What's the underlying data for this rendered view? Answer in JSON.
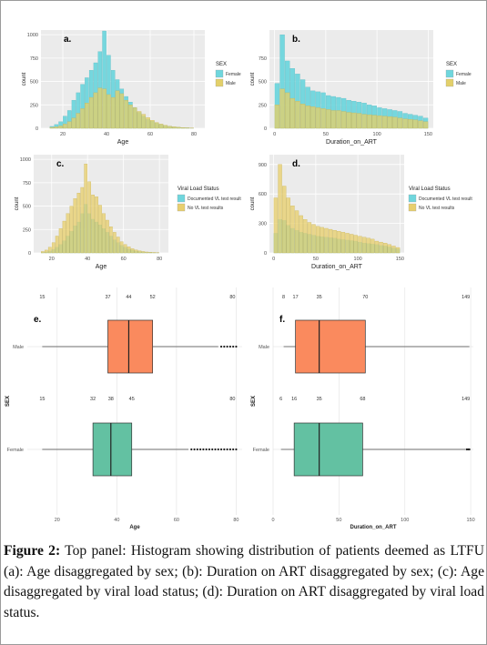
{
  "colors": {
    "female": "#6fd6dd",
    "male": "#e3d06a",
    "documented": "#6fd6dd",
    "no_vl": "#e8cf6e",
    "box_male": "#fa8a5e",
    "box_female": "#63c1a2",
    "panel_bg": "#ebebeb",
    "grid": "#ffffff"
  },
  "caption": {
    "label": "Figure 2:",
    "text": " Top panel: Histogram showing distribution of patients deemed as LTFU (a): Age disaggregated by sex; (b): Duration on ART disaggregated by sex; (c): Age disaggregated by viral load status; (d): Duration on ART disaggregated by viral load status."
  },
  "chart_data": [
    {
      "id": "a",
      "panel_label": "a.",
      "type": "histogram",
      "xlabel": "Age",
      "ylabel": "count",
      "xlim": [
        10,
        85
      ],
      "xticks": [
        20,
        40,
        60,
        80
      ],
      "ylim": [
        0,
        1050
      ],
      "yticks": [
        0,
        250,
        500,
        750,
        1000
      ],
      "legend_title": "SEX",
      "legend_position": "right",
      "x": [
        15,
        17,
        19,
        21,
        23,
        25,
        27,
        29,
        31,
        33,
        35,
        37,
        39,
        41,
        43,
        45,
        47,
        49,
        51,
        53,
        55,
        57,
        59,
        61,
        63,
        65,
        67,
        69,
        71,
        73,
        75,
        77,
        79
      ],
      "series": [
        {
          "name": "Female",
          "values": [
            20,
            40,
            70,
            130,
            190,
            300,
            380,
            470,
            540,
            620,
            700,
            820,
            1040,
            780,
            620,
            520,
            420,
            340,
            280,
            220,
            170,
            130,
            95,
            75,
            55,
            40,
            28,
            20,
            14,
            10,
            7,
            5,
            3
          ]
        },
        {
          "name": "Male",
          "values": [
            10,
            15,
            25,
            45,
            70,
            110,
            160,
            210,
            270,
            330,
            380,
            430,
            420,
            360,
            330,
            400,
            370,
            300,
            250,
            220,
            180,
            150,
            115,
            85,
            62,
            45,
            32,
            22,
            16,
            11,
            8,
            5,
            3
          ]
        }
      ]
    },
    {
      "id": "b",
      "panel_label": "b.",
      "type": "histogram",
      "xlabel": "Duration_on_ART",
      "ylabel": "count",
      "xlim": [
        -5,
        155
      ],
      "xticks": [
        0,
        50,
        100,
        150
      ],
      "ylim": [
        0,
        1050
      ],
      "yticks": [
        0,
        250,
        500,
        750
      ],
      "legend_title": "SEX",
      "legend_position": "right",
      "x": [
        2.5,
        7.5,
        12.5,
        17.5,
        22.5,
        27.5,
        32.5,
        37.5,
        42.5,
        47.5,
        52.5,
        57.5,
        62.5,
        67.5,
        72.5,
        77.5,
        82.5,
        87.5,
        92.5,
        97.5,
        102.5,
        107.5,
        112.5,
        117.5,
        122.5,
        127.5,
        132.5,
        137.5,
        142.5,
        147.5
      ],
      "series": [
        {
          "name": "Female",
          "values": [
            480,
            1000,
            720,
            640,
            580,
            520,
            440,
            400,
            390,
            380,
            350,
            340,
            330,
            320,
            300,
            290,
            280,
            270,
            250,
            240,
            220,
            210,
            200,
            190,
            180,
            160,
            150,
            140,
            130,
            110
          ]
        },
        {
          "name": "Male",
          "values": [
            250,
            420,
            380,
            320,
            290,
            260,
            240,
            230,
            220,
            210,
            200,
            190,
            190,
            180,
            170,
            165,
            160,
            150,
            145,
            140,
            135,
            130,
            125,
            120,
            110,
            100,
            95,
            90,
            80,
            70
          ]
        }
      ]
    },
    {
      "id": "c",
      "panel_label": "c.",
      "type": "histogram",
      "xlabel": "Age",
      "ylabel": "count",
      "xlim": [
        10,
        85
      ],
      "xticks": [
        20,
        40,
        60,
        80
      ],
      "ylim": [
        0,
        1050
      ],
      "yticks": [
        0,
        250,
        500,
        750,
        1000
      ],
      "legend_title": "Viral Load Status",
      "legend_position": "right",
      "x": [
        15,
        17,
        19,
        21,
        23,
        25,
        27,
        29,
        31,
        33,
        35,
        37,
        39,
        41,
        43,
        45,
        47,
        49,
        51,
        53,
        55,
        57,
        59,
        61,
        63,
        65,
        67,
        69,
        71,
        73,
        75,
        77,
        79
      ],
      "series": [
        {
          "name": "Documented VL test result",
          "values": [
            5,
            10,
            20,
            35,
            60,
            90,
            130,
            180,
            230,
            290,
            330,
            420,
            520,
            420,
            360,
            330,
            300,
            260,
            220,
            180,
            140,
            110,
            80,
            60,
            42,
            30,
            20,
            14,
            10,
            7,
            5,
            3,
            2
          ]
        },
        {
          "name": "No VL test results",
          "values": [
            15,
            30,
            60,
            110,
            180,
            260,
            340,
            420,
            500,
            580,
            640,
            700,
            950,
            760,
            620,
            600,
            510,
            420,
            350,
            280,
            220,
            170,
            120,
            90,
            65,
            45,
            32,
            22,
            15,
            10,
            7,
            5,
            3
          ]
        }
      ]
    },
    {
      "id": "d",
      "panel_label": "d.",
      "type": "histogram",
      "xlabel": "Duration_on_ART",
      "ylabel": "count",
      "xlim": [
        -5,
        155
      ],
      "xticks": [
        0,
        50,
        100,
        150
      ],
      "ylim": [
        0,
        1000
      ],
      "yticks": [
        0,
        300,
        600,
        900
      ],
      "legend_title": "Viral Load Status",
      "legend_position": "right",
      "x": [
        2.5,
        7.5,
        12.5,
        17.5,
        22.5,
        27.5,
        32.5,
        37.5,
        42.5,
        47.5,
        52.5,
        57.5,
        62.5,
        67.5,
        72.5,
        77.5,
        82.5,
        87.5,
        92.5,
        97.5,
        102.5,
        107.5,
        112.5,
        117.5,
        122.5,
        127.5,
        132.5,
        137.5,
        142.5,
        147.5
      ],
      "series": [
        {
          "name": "Documented VL test result",
          "values": [
            200,
            340,
            330,
            280,
            250,
            230,
            210,
            200,
            190,
            180,
            170,
            165,
            160,
            155,
            150,
            140,
            135,
            130,
            125,
            120,
            110,
            100,
            95,
            90,
            85,
            75,
            70,
            60,
            50,
            40
          ]
        },
        {
          "name": "No VL test results",
          "values": [
            560,
            900,
            680,
            560,
            480,
            430,
            380,
            340,
            310,
            290,
            270,
            260,
            250,
            240,
            230,
            220,
            210,
            200,
            190,
            180,
            170,
            160,
            150,
            140,
            120,
            110,
            100,
            85,
            70,
            55
          ]
        }
      ]
    },
    {
      "id": "e",
      "panel_label": "e.",
      "type": "boxplot",
      "xlabel": "Age",
      "ylabel": "SEX",
      "xlim": [
        10,
        82
      ],
      "xticks": [
        20,
        40,
        60,
        80
      ],
      "categories": [
        "Male",
        "Female"
      ],
      "boxes": [
        {
          "label": "Male",
          "min": 15,
          "q1": 37,
          "median": 44,
          "q3": 52,
          "max": 80,
          "whisker_high": 74,
          "outliers": [
            75,
            76,
            77,
            78,
            79,
            80
          ],
          "stat_labels": [
            "15",
            "37",
            "44",
            "52",
            "80"
          ]
        },
        {
          "label": "Female",
          "min": 15,
          "q1": 32,
          "median": 38,
          "q3": 45,
          "max": 80,
          "whisker_high": 64,
          "outliers": [
            65,
            66,
            67,
            68,
            69,
            70,
            71,
            72,
            73,
            74,
            75,
            76,
            77,
            78,
            79,
            80
          ],
          "stat_labels": [
            "15",
            "32",
            "38",
            "45",
            "80"
          ]
        }
      ]
    },
    {
      "id": "f",
      "panel_label": "f.",
      "type": "boxplot",
      "xlabel": "Duration_on_ART",
      "ylabel": "SEX",
      "xlim": [
        0,
        152
      ],
      "xticks": [
        0,
        50,
        100,
        150
      ],
      "categories": [
        "Male",
        "Female"
      ],
      "boxes": [
        {
          "label": "Male",
          "min": 8,
          "q1": 17,
          "median": 35,
          "q3": 70,
          "max": 149,
          "whisker_high": 149,
          "outliers": [],
          "stat_labels": [
            "8",
            "17",
            "35",
            "70",
            "149"
          ]
        },
        {
          "label": "Female",
          "min": 6,
          "q1": 16,
          "median": 35,
          "q3": 68,
          "max": 149,
          "whisker_high": 146,
          "outliers": [
            147,
            148,
            149
          ],
          "stat_labels": [
            "6",
            "16",
            "35",
            "68",
            "149"
          ]
        }
      ]
    }
  ]
}
